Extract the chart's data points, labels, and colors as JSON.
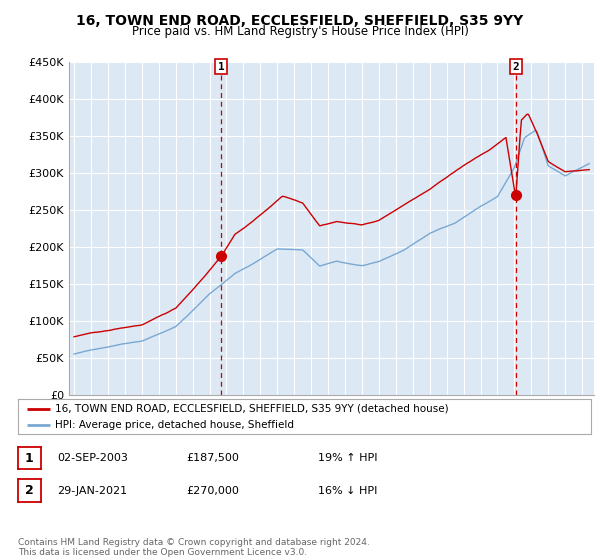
{
  "title": "16, TOWN END ROAD, ECCLESFIELD, SHEFFIELD, S35 9YY",
  "subtitle": "Price paid vs. HM Land Registry's House Price Index (HPI)",
  "ylim": [
    0,
    450000
  ],
  "yticks": [
    0,
    50000,
    100000,
    150000,
    200000,
    250000,
    300000,
    350000,
    400000,
    450000
  ],
  "ytick_labels": [
    "£0",
    "£50K",
    "£100K",
    "£150K",
    "£200K",
    "£250K",
    "£300K",
    "£350K",
    "£400K",
    "£450K"
  ],
  "legend_line1": "16, TOWN END ROAD, ECCLESFIELD, SHEFFIELD, S35 9YY (detached house)",
  "legend_line2": "HPI: Average price, detached house, Sheffield",
  "transaction1_label": "1",
  "transaction1_date": "02-SEP-2003",
  "transaction1_price": "£187,500",
  "transaction1_hpi": "19% ↑ HPI",
  "transaction2_label": "2",
  "transaction2_date": "29-JAN-2021",
  "transaction2_price": "£270,000",
  "transaction2_hpi": "16% ↓ HPI",
  "footer": "Contains HM Land Registry data © Crown copyright and database right 2024.\nThis data is licensed under the Open Government Licence v3.0.",
  "line_color_red": "#cc0000",
  "line_color_blue": "#7aa8d2",
  "dashed_color": "#cc0000",
  "background_color": "#ffffff",
  "chart_bg_color": "#dce9f5",
  "grid_color": "#ffffff",
  "transaction1_x": 2003.67,
  "transaction1_y": 187500,
  "transaction2_x": 2021.08,
  "transaction2_y": 270000,
  "xlim_left": 1994.7,
  "xlim_right": 2025.7
}
